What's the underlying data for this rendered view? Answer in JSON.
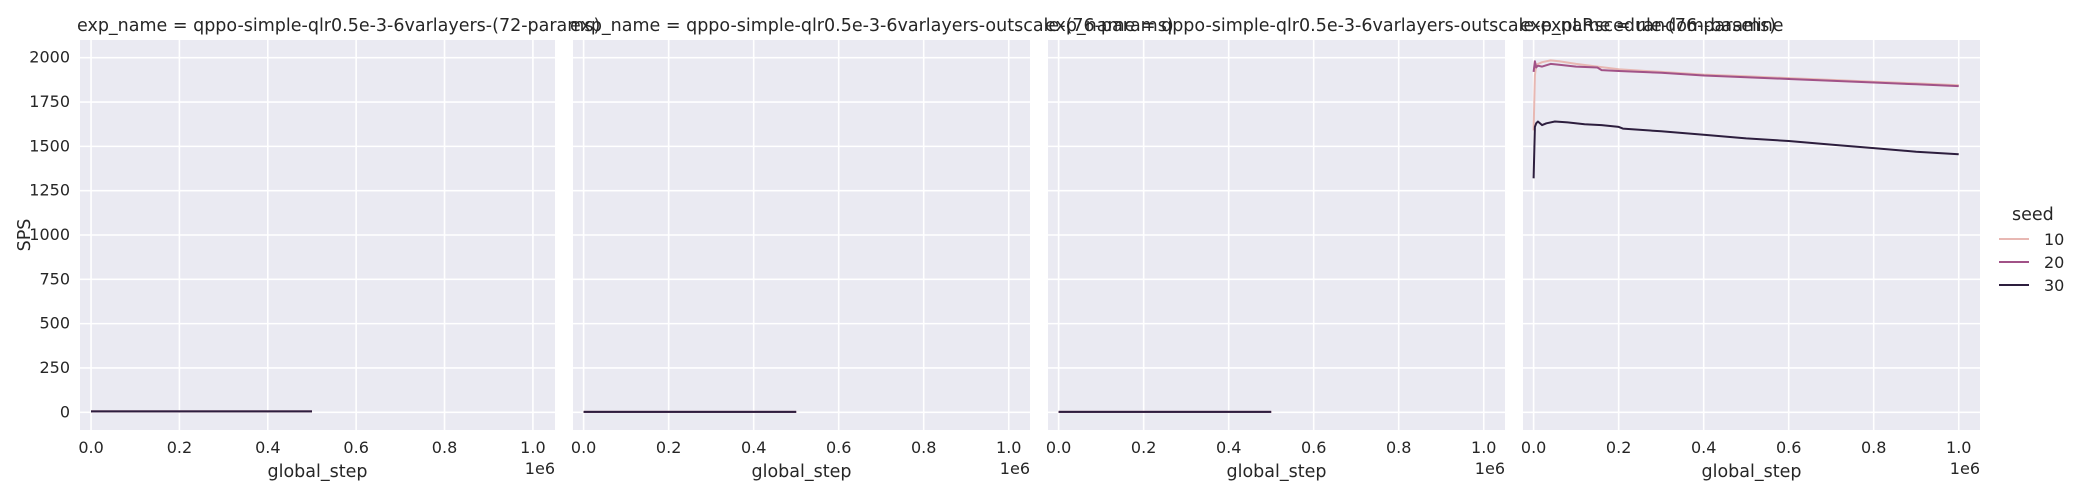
{
  "chart_data": [
    {
      "type": "line",
      "title": "exp_name = qppo-simple-qlr0.5e-3-6varlayers-(72-params)",
      "xlabel": "global_step",
      "ylabel": "SPS",
      "x_offset_label": "1e6",
      "xlim": [
        -25000,
        1050000
      ],
      "ylim": [
        -100,
        2100
      ],
      "xticks": [
        "0.0",
        "0.2",
        "0.4",
        "0.6",
        "0.8",
        "1.0"
      ],
      "yticks": [
        "0",
        "250",
        "500",
        "750",
        "1000",
        "1250",
        "1500",
        "1750",
        "2000"
      ],
      "series": [
        {
          "name": "10",
          "color": "#e8b8b3",
          "x": [
            0,
            500000
          ],
          "y": [
            5,
            5
          ]
        },
        {
          "name": "20",
          "color": "#a15287",
          "x": [
            0,
            500000
          ],
          "y": [
            5,
            5
          ]
        },
        {
          "name": "30",
          "color": "#2d1e3e",
          "x": [
            0,
            500000
          ],
          "y": [
            5,
            5
          ]
        }
      ]
    },
    {
      "type": "line",
      "title": "exp_name = qppo-simple-qlr0.5e-3-6varlayers-outscale-(76-params)",
      "xlabel": "global_step",
      "ylabel": "",
      "x_offset_label": "1e6",
      "xlim": [
        -25000,
        1050000
      ],
      "ylim": [
        -100,
        2100
      ],
      "xticks": [
        "0.0",
        "0.2",
        "0.4",
        "0.6",
        "0.8",
        "1.0"
      ],
      "yticks": [],
      "series": [
        {
          "name": "10",
          "color": "#e8b8b3",
          "x": [
            0,
            500000
          ],
          "y": [
            2,
            2
          ]
        },
        {
          "name": "20",
          "color": "#a15287",
          "x": [
            0,
            500000
          ],
          "y": [
            2,
            2
          ]
        },
        {
          "name": "30",
          "color": "#2d1e3e",
          "x": [
            0,
            500000
          ],
          "y": [
            2,
            2
          ]
        }
      ]
    },
    {
      "type": "line",
      "title": "exp_name = qppo-simple-qlr0.5e-3-6varlayers-outscale-expLRscedule-(76-params)",
      "xlabel": "global_step",
      "ylabel": "",
      "x_offset_label": "1e6",
      "xlim": [
        -25000,
        1050000
      ],
      "ylim": [
        -100,
        2100
      ],
      "xticks": [
        "0.0",
        "0.2",
        "0.4",
        "0.6",
        "0.8",
        "1.0"
      ],
      "yticks": [],
      "series": [
        {
          "name": "10",
          "color": "#e8b8b3",
          "x": [
            0,
            500000
          ],
          "y": [
            2,
            2
          ]
        },
        {
          "name": "20",
          "color": "#a15287",
          "x": [
            0,
            500000
          ],
          "y": [
            2,
            2
          ]
        },
        {
          "name": "30",
          "color": "#2d1e3e",
          "x": [
            0,
            500000
          ],
          "y": [
            2,
            2
          ]
        }
      ]
    },
    {
      "type": "line",
      "title": "exp_name = random-baseline",
      "xlabel": "global_step",
      "ylabel": "",
      "x_offset_label": "1e6",
      "xlim": [
        -25000,
        1050000
      ],
      "ylim": [
        -100,
        2100
      ],
      "xticks": [
        "0.0",
        "0.2",
        "0.4",
        "0.6",
        "0.8",
        "1.0"
      ],
      "yticks": [],
      "series": [
        {
          "name": "10",
          "color": "#e8b8b3",
          "x": [
            0,
            3000,
            6000,
            10000,
            20000,
            40000,
            60000,
            100000,
            150000,
            200000,
            300000,
            400000,
            500000,
            600000,
            700000,
            800000,
            900000,
            1000000
          ],
          "y": [
            1590,
            1900,
            1960,
            1965,
            1975,
            1985,
            1980,
            1965,
            1950,
            1935,
            1920,
            1905,
            1895,
            1885,
            1875,
            1865,
            1855,
            1845
          ]
        },
        {
          "name": "20",
          "color": "#a15287",
          "x": [
            0,
            3000,
            6000,
            10000,
            20000,
            40000,
            60000,
            100000,
            150000,
            160000,
            200000,
            300000,
            400000,
            500000,
            600000,
            700000,
            800000,
            900000,
            1000000
          ],
          "y": [
            1920,
            1980,
            1945,
            1955,
            1950,
            1965,
            1960,
            1950,
            1945,
            1930,
            1925,
            1915,
            1900,
            1890,
            1880,
            1870,
            1860,
            1850,
            1840
          ]
        },
        {
          "name": "30",
          "color": "#2d1e3e",
          "x": [
            0,
            3000,
            6000,
            10000,
            20000,
            30000,
            50000,
            80000,
            120000,
            160000,
            200000,
            210000,
            300000,
            400000,
            500000,
            600000,
            700000,
            800000,
            900000,
            1000000
          ],
          "y": [
            1320,
            1610,
            1630,
            1640,
            1620,
            1630,
            1640,
            1635,
            1625,
            1620,
            1610,
            1600,
            1585,
            1565,
            1545,
            1530,
            1510,
            1490,
            1470,
            1455
          ]
        }
      ]
    }
  ],
  "legend": {
    "title": "seed",
    "placement": "right",
    "entries": [
      {
        "label": "10",
        "color": "#e8b8b3"
      },
      {
        "label": "20",
        "color": "#a15287"
      },
      {
        "label": "30",
        "color": "#2d1e3e"
      }
    ]
  }
}
